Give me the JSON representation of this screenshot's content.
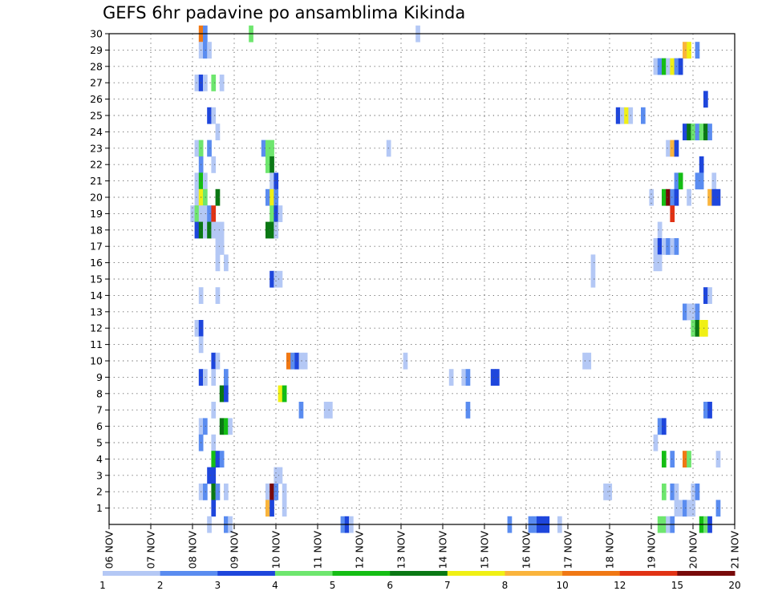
{
  "chart_data": {
    "type": "heatmap",
    "title": "GEFS 6hr padavine po ansamblima Kikinda",
    "x_ticks": [
      "06 NOV",
      "07 NOV",
      "08 NOV",
      "09 NOV",
      "10 NOV",
      "11 NOV",
      "12 NOV",
      "13 NOV",
      "14 NOV",
      "15 NOV",
      "16 NOV",
      "17 NOV",
      "18 NOV",
      "19 NOV",
      "20 NOV",
      "21 NOV"
    ],
    "x_range_days": [
      0,
      15
    ],
    "y_ticks": [
      1,
      2,
      3,
      4,
      5,
      6,
      7,
      8,
      9,
      10,
      11,
      12,
      13,
      14,
      15,
      16,
      17,
      18,
      19,
      20,
      21,
      22,
      23,
      24,
      25,
      26,
      27,
      28,
      29,
      30
    ],
    "y_range": [
      0,
      30
    ],
    "colorbar": {
      "colors": [
        "#b4c8f5",
        "#5a8cf0",
        "#1e46dc",
        "#6ee66e",
        "#14be14",
        "#0a7814",
        "#f0f014",
        "#fab43c",
        "#f07814",
        "#e13214",
        "#780a0a"
      ],
      "labels": [
        "1",
        "2",
        "3",
        "4",
        "5",
        "6",
        "7",
        "8",
        "10",
        "12",
        "15",
        "20"
      ]
    },
    "cells": [
      [
        2.2,
        30,
        9
      ],
      [
        2.3,
        30,
        2
      ],
      [
        3.4,
        30,
        4
      ],
      [
        7.4,
        30,
        1
      ],
      [
        2.2,
        29,
        1
      ],
      [
        2.3,
        29,
        2
      ],
      [
        2.4,
        29,
        1
      ],
      [
        13.8,
        29,
        8
      ],
      [
        13.9,
        29,
        7
      ],
      [
        14.1,
        29,
        2
      ],
      [
        13.1,
        28,
        1
      ],
      [
        13.2,
        28,
        2
      ],
      [
        13.3,
        28,
        5
      ],
      [
        13.4,
        28,
        1
      ],
      [
        13.5,
        28,
        7
      ],
      [
        13.6,
        28,
        2
      ],
      [
        13.7,
        28,
        3
      ],
      [
        2.1,
        27,
        1
      ],
      [
        2.2,
        27,
        3
      ],
      [
        2.3,
        27,
        1
      ],
      [
        2.5,
        27,
        4
      ],
      [
        2.7,
        27,
        1
      ],
      [
        14.3,
        26,
        3
      ],
      [
        2.4,
        25,
        3
      ],
      [
        2.5,
        25,
        1
      ],
      [
        12.2,
        25,
        3
      ],
      [
        12.3,
        25,
        1
      ],
      [
        12.4,
        25,
        7
      ],
      [
        12.5,
        25,
        1
      ],
      [
        12.8,
        25,
        2
      ],
      [
        2.6,
        24,
        1
      ],
      [
        13.8,
        24,
        3
      ],
      [
        13.9,
        24,
        6
      ],
      [
        14.0,
        24,
        4
      ],
      [
        14.1,
        24,
        2
      ],
      [
        14.2,
        24,
        4
      ],
      [
        14.3,
        24,
        6
      ],
      [
        14.4,
        24,
        2
      ],
      [
        2.1,
        23,
        1
      ],
      [
        2.2,
        23,
        4
      ],
      [
        2.4,
        23,
        2
      ],
      [
        3.7,
        23,
        2
      ],
      [
        3.8,
        23,
        4
      ],
      [
        3.9,
        23,
        4
      ],
      [
        6.7,
        23,
        1
      ],
      [
        13.4,
        23,
        1
      ],
      [
        13.5,
        23,
        8
      ],
      [
        13.6,
        23,
        3
      ],
      [
        2.2,
        22,
        2
      ],
      [
        2.5,
        22,
        1
      ],
      [
        3.8,
        22,
        4
      ],
      [
        3.9,
        22,
        6
      ],
      [
        14.2,
        22,
        3
      ],
      [
        2.1,
        21,
        1
      ],
      [
        2.2,
        21,
        5
      ],
      [
        2.3,
        21,
        1
      ],
      [
        3.9,
        21,
        1
      ],
      [
        4.0,
        21,
        3
      ],
      [
        13.6,
        21,
        2
      ],
      [
        13.7,
        21,
        5
      ],
      [
        14.1,
        21,
        2
      ],
      [
        14.2,
        21,
        2
      ],
      [
        14.5,
        21,
        1
      ],
      [
        2.1,
        20,
        1
      ],
      [
        2.2,
        20,
        7
      ],
      [
        2.3,
        20,
        4
      ],
      [
        2.6,
        20,
        6
      ],
      [
        3.8,
        20,
        2
      ],
      [
        3.9,
        20,
        7
      ],
      [
        4.0,
        20,
        2
      ],
      [
        13.0,
        20,
        1
      ],
      [
        13.3,
        20,
        5
      ],
      [
        13.4,
        20,
        11
      ],
      [
        13.5,
        20,
        2
      ],
      [
        13.6,
        20,
        3
      ],
      [
        13.9,
        20,
        1
      ],
      [
        14.4,
        20,
        8
      ],
      [
        14.5,
        20,
        3
      ],
      [
        14.6,
        20,
        3
      ],
      [
        2.0,
        19,
        1
      ],
      [
        2.1,
        19,
        4
      ],
      [
        2.2,
        19,
        1
      ],
      [
        2.3,
        19,
        1
      ],
      [
        2.4,
        19,
        2
      ],
      [
        2.5,
        19,
        10
      ],
      [
        3.9,
        19,
        4
      ],
      [
        4.0,
        19,
        3
      ],
      [
        4.1,
        19,
        1
      ],
      [
        13.5,
        19,
        10
      ],
      [
        2.1,
        18,
        3
      ],
      [
        2.2,
        18,
        6
      ],
      [
        2.3,
        18,
        1
      ],
      [
        2.4,
        18,
        6
      ],
      [
        2.5,
        18,
        1
      ],
      [
        2.6,
        18,
        1
      ],
      [
        2.7,
        18,
        1
      ],
      [
        3.8,
        18,
        6
      ],
      [
        3.9,
        18,
        6
      ],
      [
        4.0,
        18,
        1
      ],
      [
        13.2,
        18,
        1
      ],
      [
        2.6,
        17,
        1
      ],
      [
        2.7,
        17,
        1
      ],
      [
        13.1,
        17,
        1
      ],
      [
        13.2,
        17,
        3
      ],
      [
        13.3,
        17,
        1
      ],
      [
        13.4,
        17,
        2
      ],
      [
        13.5,
        17,
        1
      ],
      [
        13.6,
        17,
        2
      ],
      [
        2.6,
        16,
        1
      ],
      [
        2.8,
        16,
        1
      ],
      [
        13.1,
        16,
        1
      ],
      [
        13.2,
        16,
        1
      ],
      [
        11.6,
        16,
        1
      ],
      [
        3.9,
        15,
        3
      ],
      [
        4.0,
        15,
        1
      ],
      [
        4.1,
        15,
        1
      ],
      [
        11.6,
        15,
        1
      ],
      [
        2.2,
        14,
        1
      ],
      [
        2.6,
        14,
        1
      ],
      [
        14.3,
        14,
        3
      ],
      [
        14.4,
        14,
        1
      ],
      [
        13.8,
        13,
        2
      ],
      [
        13.9,
        13,
        1
      ],
      [
        14.0,
        13,
        1
      ],
      [
        14.1,
        13,
        2
      ],
      [
        2.1,
        12,
        1
      ],
      [
        2.2,
        12,
        3
      ],
      [
        14.0,
        12,
        4
      ],
      [
        14.1,
        12,
        6
      ],
      [
        14.2,
        12,
        7
      ],
      [
        14.3,
        12,
        7
      ],
      [
        2.2,
        11,
        1
      ],
      [
        2.5,
        10,
        3
      ],
      [
        2.6,
        10,
        1
      ],
      [
        4.3,
        10,
        9
      ],
      [
        4.4,
        10,
        2
      ],
      [
        4.5,
        10,
        3
      ],
      [
        4.6,
        10,
        1
      ],
      [
        4.7,
        10,
        1
      ],
      [
        7.1,
        10,
        1
      ],
      [
        11.4,
        10,
        1
      ],
      [
        11.5,
        10,
        1
      ],
      [
        2.2,
        9,
        3
      ],
      [
        2.3,
        9,
        1
      ],
      [
        2.5,
        9,
        1
      ],
      [
        2.8,
        9,
        2
      ],
      [
        8.2,
        9,
        1
      ],
      [
        8.5,
        9,
        1
      ],
      [
        8.6,
        9,
        2
      ],
      [
        9.2,
        9,
        3
      ],
      [
        9.3,
        9,
        3
      ],
      [
        2.7,
        8,
        6
      ],
      [
        2.8,
        8,
        3
      ],
      [
        4.1,
        8,
        7
      ],
      [
        4.2,
        8,
        5
      ],
      [
        2.5,
        7,
        1
      ],
      [
        4.6,
        7,
        2
      ],
      [
        5.2,
        7,
        1
      ],
      [
        5.3,
        7,
        1
      ],
      [
        8.6,
        7,
        2
      ],
      [
        14.3,
        7,
        2
      ],
      [
        14.4,
        7,
        3
      ],
      [
        2.2,
        6,
        1
      ],
      [
        2.3,
        6,
        2
      ],
      [
        2.7,
        6,
        6
      ],
      [
        2.8,
        6,
        5
      ],
      [
        2.9,
        6,
        1
      ],
      [
        13.2,
        6,
        2
      ],
      [
        13.3,
        6,
        3
      ],
      [
        2.2,
        5,
        2
      ],
      [
        2.5,
        5,
        1
      ],
      [
        13.1,
        5,
        1
      ],
      [
        2.5,
        4,
        5
      ],
      [
        2.6,
        4,
        3
      ],
      [
        2.7,
        4,
        2
      ],
      [
        13.3,
        4,
        5
      ],
      [
        13.5,
        4,
        2
      ],
      [
        13.8,
        4,
        9
      ],
      [
        13.9,
        4,
        4
      ],
      [
        14.6,
        4,
        1
      ],
      [
        2.4,
        3,
        3
      ],
      [
        2.5,
        3,
        3
      ],
      [
        4.0,
        3,
        1
      ],
      [
        4.1,
        3,
        1
      ],
      [
        2.2,
        2,
        1
      ],
      [
        2.3,
        2,
        2
      ],
      [
        2.5,
        2,
        6
      ],
      [
        2.6,
        2,
        2
      ],
      [
        2.8,
        2,
        1
      ],
      [
        3.8,
        2,
        1
      ],
      [
        3.9,
        2,
        12
      ],
      [
        4.0,
        2,
        2
      ],
      [
        4.2,
        2,
        1
      ],
      [
        11.9,
        2,
        1
      ],
      [
        12.0,
        2,
        1
      ],
      [
        13.3,
        2,
        4
      ],
      [
        13.5,
        2,
        2
      ],
      [
        13.6,
        2,
        1
      ],
      [
        14.0,
        2,
        1
      ],
      [
        14.1,
        2,
        2
      ],
      [
        2.5,
        1,
        3
      ],
      [
        3.8,
        1,
        8
      ],
      [
        3.9,
        1,
        3
      ],
      [
        4.2,
        1,
        1
      ],
      [
        13.6,
        1,
        1
      ],
      [
        13.7,
        1,
        1
      ],
      [
        13.8,
        1,
        2
      ],
      [
        13.9,
        1,
        1
      ],
      [
        14.0,
        1,
        1
      ],
      [
        14.6,
        1,
        2
      ],
      [
        2.4,
        0,
        1
      ],
      [
        2.8,
        0,
        2
      ],
      [
        2.9,
        0,
        1
      ],
      [
        5.6,
        0,
        2
      ],
      [
        5.7,
        0,
        3
      ],
      [
        5.8,
        0,
        1
      ],
      [
        9.6,
        0,
        2
      ],
      [
        10.1,
        0,
        2
      ],
      [
        10.2,
        0,
        2
      ],
      [
        10.3,
        0,
        3
      ],
      [
        10.4,
        0,
        3
      ],
      [
        10.5,
        0,
        3
      ],
      [
        10.8,
        0,
        1
      ],
      [
        13.2,
        0,
        4
      ],
      [
        13.3,
        0,
        4
      ],
      [
        13.4,
        0,
        1
      ],
      [
        13.5,
        0,
        2
      ],
      [
        14.2,
        0,
        5
      ],
      [
        14.3,
        0,
        4
      ],
      [
        14.4,
        0,
        3
      ]
    ]
  }
}
